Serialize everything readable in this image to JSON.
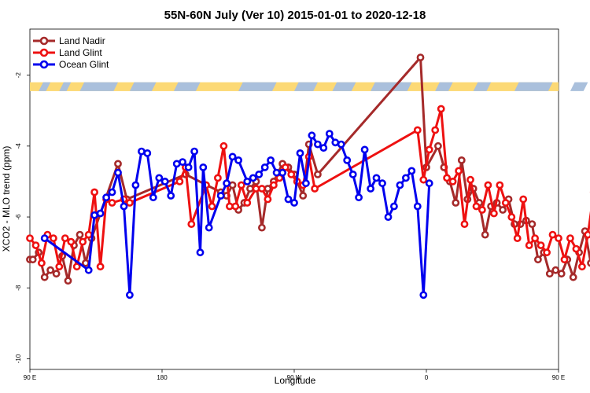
{
  "chart_data": {
    "type": "line",
    "title": "55N-60N July (Ver 10)   2015-01-01 to 2020-12-18",
    "xlabel": "Longitude",
    "ylabel": "XCO2 - MLO trend (ppm)",
    "xlim": [
      90,
      450
    ],
    "ylim": [
      -10.3,
      -0.7
    ],
    "xticks": [
      {
        "value": 90,
        "label": "90 E"
      },
      {
        "value": 180,
        "label": "180"
      },
      {
        "value": 270,
        "label": "90 W"
      },
      {
        "value": 360,
        "label": "0"
      },
      {
        "value": 450,
        "label": "90 E"
      },
      {
        "value": 540,
        "label": "180"
      }
    ],
    "yticks": [
      -10,
      -8,
      -6,
      -4,
      -2
    ],
    "grid": false,
    "legend_position": "top-left",
    "land_band_colors": {
      "land": "#fcd975",
      "ocean": "#aac0dc"
    },
    "series": [
      {
        "name": "Land Nadir",
        "color": "#a52a2a",
        "points": [
          [
            90,
            -7.2
          ],
          [
            92,
            -7.2
          ],
          [
            96,
            -7.0
          ],
          [
            100,
            -7.7
          ],
          [
            104,
            -7.5
          ],
          [
            108,
            -7.6
          ],
          [
            112,
            -7.1
          ],
          [
            116,
            -7.8
          ],
          [
            120,
            -6.8
          ],
          [
            124,
            -6.5
          ],
          [
            128,
            -7.3
          ],
          [
            132,
            -6.6
          ],
          [
            150,
            -4.5
          ],
          [
            156,
            -5.5
          ],
          [
            196,
            -4.8
          ],
          [
            220,
            -5.3
          ],
          [
            224,
            -5.4
          ],
          [
            228,
            -5.1
          ],
          [
            232,
            -5.8
          ],
          [
            236,
            -5.6
          ],
          [
            240,
            -5.2
          ],
          [
            244,
            -5.0
          ],
          [
            248,
            -6.3
          ],
          [
            252,
            -5.2
          ],
          [
            256,
            -5.0
          ],
          [
            262,
            -4.5
          ],
          [
            266,
            -4.6
          ],
          [
            270,
            -4.8
          ],
          [
            276,
            -5.4
          ],
          [
            280,
            -3.95
          ],
          [
            286,
            -4.8
          ],
          [
            356,
            -1.5
          ],
          [
            360,
            -4.6
          ],
          [
            368,
            -4.0
          ],
          [
            372,
            -4.6
          ],
          [
            376,
            -5.0
          ],
          [
            380,
            -5.6
          ],
          [
            384,
            -4.4
          ],
          [
            388,
            -5.5
          ],
          [
            392,
            -5.2
          ],
          [
            396,
            -5.6
          ],
          [
            400,
            -6.5
          ],
          [
            404,
            -5.7
          ],
          [
            408,
            -5.6
          ],
          [
            412,
            -5.8
          ],
          [
            416,
            -5.5
          ],
          [
            420,
            -6.2
          ],
          [
            424,
            -6.2
          ],
          [
            428,
            -6.1
          ],
          [
            432,
            -6.2
          ],
          [
            436,
            -7.2
          ],
          [
            440,
            -7.0
          ],
          [
            444,
            -7.6
          ],
          [
            448,
            -7.5
          ],
          [
            452,
            -7.6
          ],
          [
            456,
            -7.2
          ],
          [
            460,
            -7.7
          ],
          [
            464,
            -7.0
          ],
          [
            468,
            -6.4
          ],
          [
            472,
            -7.3
          ],
          [
            480,
            -4.5
          ]
        ]
      },
      {
        "name": "Land Glint",
        "color": "#ee1111",
        "points": [
          [
            90,
            -6.6
          ],
          [
            94,
            -6.8
          ],
          [
            98,
            -7.3
          ],
          [
            102,
            -6.5
          ],
          [
            106,
            -6.6
          ],
          [
            110,
            -7.4
          ],
          [
            114,
            -6.6
          ],
          [
            118,
            -6.7
          ],
          [
            122,
            -7.4
          ],
          [
            126,
            -6.7
          ],
          [
            130,
            -6.5
          ],
          [
            134,
            -5.3
          ],
          [
            138,
            -7.4
          ],
          [
            142,
            -5.5
          ],
          [
            146,
            -5.6
          ],
          [
            154,
            -5.5
          ],
          [
            158,
            -5.6
          ],
          [
            192,
            -5.0
          ],
          [
            196,
            -4.6
          ],
          [
            200,
            -6.2
          ],
          [
            210,
            -5.1
          ],
          [
            214,
            -5.7
          ],
          [
            218,
            -4.9
          ],
          [
            222,
            -4.0
          ],
          [
            226,
            -5.7
          ],
          [
            230,
            -5.7
          ],
          [
            234,
            -5.1
          ],
          [
            238,
            -5.6
          ],
          [
            244,
            -5.2
          ],
          [
            248,
            -5.2
          ],
          [
            252,
            -5.5
          ],
          [
            256,
            -5.1
          ],
          [
            260,
            -4.9
          ],
          [
            264,
            -4.6
          ],
          [
            268,
            -4.8
          ],
          [
            272,
            -5.0
          ],
          [
            276,
            -5.1
          ],
          [
            280,
            -4.3
          ],
          [
            284,
            -5.2
          ],
          [
            354,
            -3.55
          ],
          [
            358,
            -4.95
          ],
          [
            362,
            -4.1
          ],
          [
            366,
            -3.55
          ],
          [
            370,
            -2.95
          ],
          [
            374,
            -4.9
          ],
          [
            378,
            -5.0
          ],
          [
            382,
            -4.7
          ],
          [
            386,
            -6.2
          ],
          [
            390,
            -4.95
          ],
          [
            394,
            -5.7
          ],
          [
            398,
            -5.8
          ],
          [
            402,
            -5.1
          ],
          [
            406,
            -5.9
          ],
          [
            410,
            -5.1
          ],
          [
            414,
            -5.6
          ],
          [
            418,
            -6.0
          ],
          [
            422,
            -6.6
          ],
          [
            426,
            -5.5
          ],
          [
            430,
            -6.8
          ],
          [
            434,
            -6.6
          ],
          [
            438,
            -6.8
          ],
          [
            442,
            -7.0
          ],
          [
            446,
            -6.5
          ],
          [
            450,
            -6.6
          ],
          [
            454,
            -7.2
          ],
          [
            458,
            -6.6
          ],
          [
            462,
            -6.9
          ],
          [
            466,
            -7.4
          ],
          [
            470,
            -6.5
          ],
          [
            474,
            -5.3
          ],
          [
            478,
            -7.4
          ],
          [
            482,
            -5.6
          ],
          [
            486,
            -5.5
          ]
        ]
      },
      {
        "name": "Ocean Glint",
        "color": "#0000ee",
        "points": [
          [
            100,
            -6.6
          ],
          [
            130,
            -7.5
          ],
          [
            134,
            -5.95
          ],
          [
            138,
            -5.9
          ],
          [
            142,
            -5.45
          ],
          [
            146,
            -5.3
          ],
          [
            150,
            -4.75
          ],
          [
            154,
            -5.7
          ],
          [
            158,
            -8.2
          ],
          [
            162,
            -5.1
          ],
          [
            166,
            -4.15
          ],
          [
            170,
            -4.2
          ],
          [
            174,
            -5.45
          ],
          [
            178,
            -4.9
          ],
          [
            182,
            -5.0
          ],
          [
            186,
            -5.4
          ],
          [
            190,
            -4.5
          ],
          [
            194,
            -4.45
          ],
          [
            198,
            -4.6
          ],
          [
            202,
            -4.15
          ],
          [
            206,
            -7.0
          ],
          [
            208,
            -4.6
          ],
          [
            212,
            -6.3
          ],
          [
            220,
            -5.4
          ],
          [
            224,
            -5.05
          ],
          [
            228,
            -4.3
          ],
          [
            232,
            -4.4
          ],
          [
            238,
            -5.0
          ],
          [
            242,
            -4.9
          ],
          [
            246,
            -4.8
          ],
          [
            250,
            -4.6
          ],
          [
            254,
            -4.4
          ],
          [
            258,
            -4.75
          ],
          [
            262,
            -4.75
          ],
          [
            266,
            -5.5
          ],
          [
            270,
            -5.6
          ],
          [
            274,
            -4.2
          ],
          [
            278,
            -5.05
          ],
          [
            282,
            -3.7
          ],
          [
            286,
            -3.95
          ],
          [
            290,
            -4.05
          ],
          [
            294,
            -3.65
          ],
          [
            298,
            -3.9
          ],
          [
            302,
            -3.95
          ],
          [
            306,
            -4.4
          ],
          [
            310,
            -4.8
          ],
          [
            314,
            -5.45
          ],
          [
            318,
            -4.1
          ],
          [
            322,
            -5.2
          ],
          [
            326,
            -4.9
          ],
          [
            330,
            -5.05
          ],
          [
            334,
            -6.0
          ],
          [
            338,
            -5.7
          ],
          [
            342,
            -5.1
          ],
          [
            346,
            -4.9
          ],
          [
            350,
            -4.7
          ],
          [
            354,
            -5.7
          ],
          [
            358,
            -8.2
          ],
          [
            362,
            -5.05
          ]
        ]
      }
    ]
  }
}
